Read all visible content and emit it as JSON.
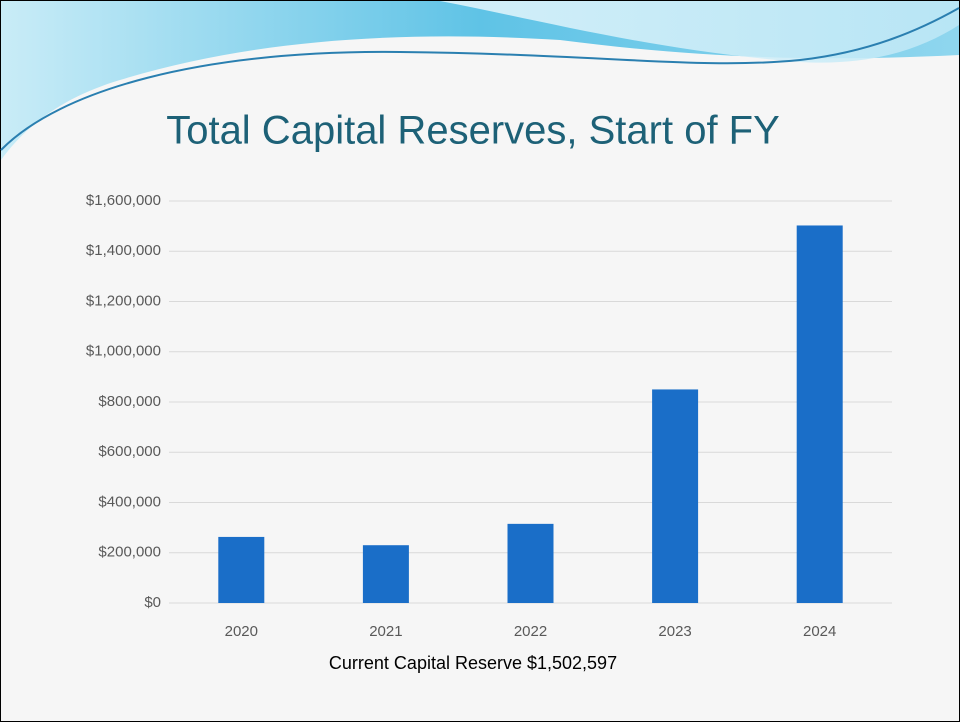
{
  "chart_data": {
    "type": "bar",
    "title": "Total Capital Reserves, Start of FY",
    "annotation": "Current Capital Reserve $1,502,597",
    "categories": [
      "2020",
      "2021",
      "2022",
      "2023",
      "2024"
    ],
    "values": [
      263000,
      230000,
      315000,
      850000,
      1502597
    ],
    "color": "#1a6ec8",
    "ylim": [
      0,
      1600000
    ],
    "yticks": [
      {
        "value": 0,
        "label": "$0"
      },
      {
        "value": 200000,
        "label": "$200,000"
      },
      {
        "value": 400000,
        "label": "$400,000"
      },
      {
        "value": 600000,
        "label": "$600,000"
      },
      {
        "value": 800000,
        "label": "$800,000"
      },
      {
        "value": 1000000,
        "label": "$1,000,000"
      },
      {
        "value": 1200000,
        "label": "$1,200,000"
      },
      {
        "value": 1400000,
        "label": "$1,400,000"
      },
      {
        "value": 1600000,
        "label": "$1,600,000"
      }
    ],
    "grid": true
  }
}
